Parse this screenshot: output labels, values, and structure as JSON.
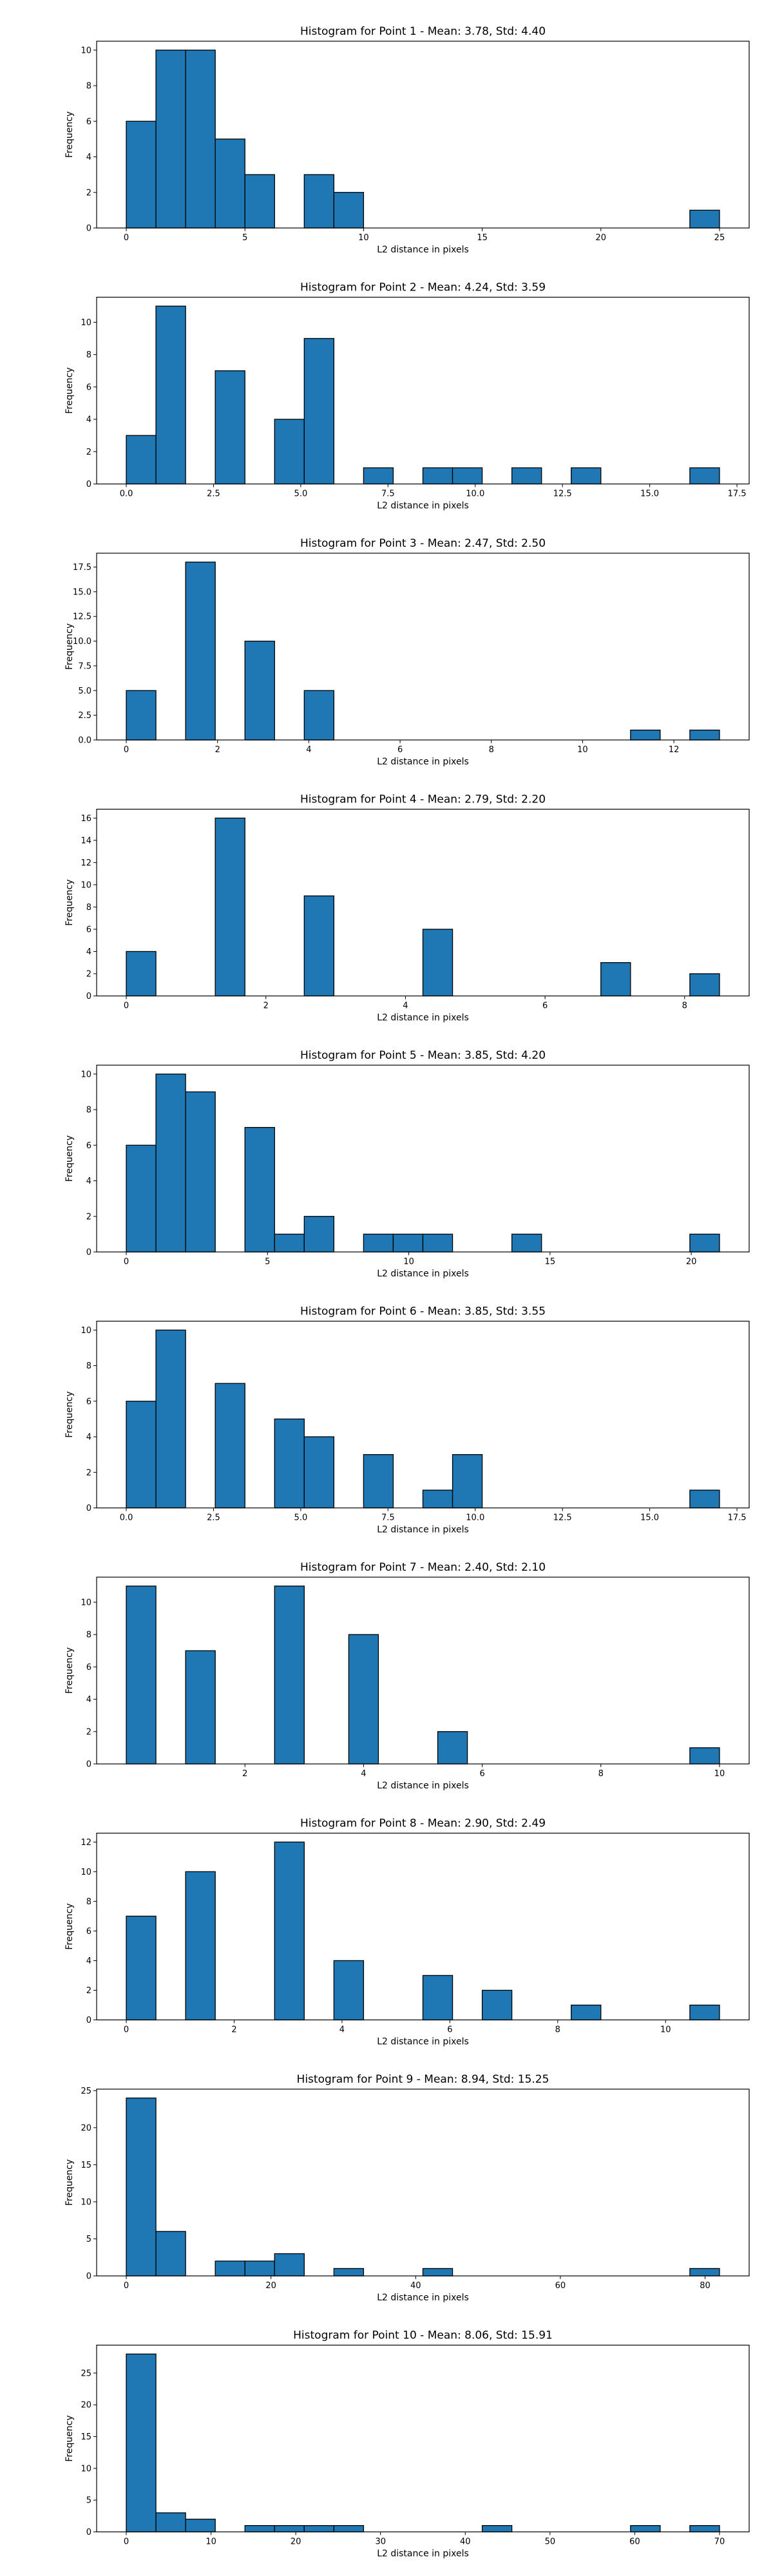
{
  "chart_data": [
    {
      "type": "bar",
      "title": "Histogram for Point 1 - Mean: 3.78, Std: 4.40",
      "xlabel": "L2 distance in pixels",
      "ylabel": "Frequency",
      "xlim": [
        -1.25,
        26.25
      ],
      "ylim": [
        0,
        10.5
      ],
      "xticks": [
        0,
        5,
        10,
        15,
        20,
        25
      ],
      "xtick_labels": [
        "0",
        "5",
        "10",
        "15",
        "20",
        "25"
      ],
      "yticks": [
        0,
        2,
        4,
        6,
        8,
        10
      ],
      "ytick_labels": [
        "0",
        "2",
        "4",
        "6",
        "8",
        "10"
      ],
      "bins": [
        [
          0,
          1.25,
          6
        ],
        [
          1.25,
          2.5,
          10
        ],
        [
          2.5,
          3.75,
          10
        ],
        [
          3.75,
          5,
          5
        ],
        [
          5,
          6.25,
          3
        ],
        [
          7.5,
          8.75,
          3
        ],
        [
          8.75,
          10,
          2
        ],
        [
          23.75,
          25,
          1
        ]
      ]
    },
    {
      "type": "bar",
      "title": "Histogram for Point 2 - Mean: 4.24, Std: 3.59",
      "xlabel": "L2 distance in pixels",
      "ylabel": "Frequency",
      "xlim": [
        -0.85,
        17.85
      ],
      "ylim": [
        0,
        11.55
      ],
      "xticks": [
        0,
        2.5,
        5,
        7.5,
        10,
        12.5,
        15,
        17.5
      ],
      "xtick_labels": [
        "0.0",
        "2.5",
        "5.0",
        "7.5",
        "10.0",
        "12.5",
        "15.0",
        "17.5"
      ],
      "yticks": [
        0,
        2,
        4,
        6,
        8,
        10
      ],
      "ytick_labels": [
        "0",
        "2",
        "4",
        "6",
        "8",
        "10"
      ],
      "bins": [
        [
          0,
          0.85,
          3
        ],
        [
          0.85,
          1.7,
          11
        ],
        [
          2.55,
          3.4,
          7
        ],
        [
          4.25,
          5.1,
          4
        ],
        [
          5.1,
          5.95,
          9
        ],
        [
          6.8,
          7.65,
          1
        ],
        [
          8.5,
          9.35,
          1
        ],
        [
          9.35,
          10.2,
          1
        ],
        [
          11.05,
          11.9,
          1
        ],
        [
          12.75,
          13.6,
          1
        ],
        [
          16.15,
          17,
          1
        ]
      ]
    },
    {
      "type": "bar",
      "title": "Histogram for Point 3 - Mean: 2.47, Std: 2.50",
      "xlabel": "L2 distance in pixels",
      "ylabel": "Frequency",
      "xlim": [
        -0.65,
        13.65
      ],
      "ylim": [
        0,
        18.9
      ],
      "xticks": [
        0,
        2,
        4,
        6,
        8,
        10,
        12
      ],
      "xtick_labels": [
        "0",
        "2",
        "4",
        "6",
        "8",
        "10",
        "12"
      ],
      "yticks": [
        0,
        2.5,
        5,
        7.5,
        10,
        12.5,
        15,
        17.5
      ],
      "ytick_labels": [
        "0.0",
        "2.5",
        "5.0",
        "7.5",
        "10.0",
        "12.5",
        "15.0",
        "17.5"
      ],
      "bins": [
        [
          0,
          0.65,
          5
        ],
        [
          1.3,
          1.95,
          18
        ],
        [
          2.6,
          3.25,
          10
        ],
        [
          3.9,
          4.55,
          5
        ],
        [
          11.05,
          11.7,
          1
        ],
        [
          12.35,
          13,
          1
        ]
      ]
    },
    {
      "type": "bar",
      "title": "Histogram for Point 4 - Mean: 2.79, Std: 2.20",
      "xlabel": "L2 distance in pixels",
      "ylabel": "Frequency",
      "xlim": [
        -0.425,
        8.925
      ],
      "ylim": [
        0,
        16.8
      ],
      "xticks": [
        0,
        2,
        4,
        6,
        8
      ],
      "xtick_labels": [
        "0",
        "2",
        "4",
        "6",
        "8"
      ],
      "yticks": [
        0,
        2,
        4,
        6,
        8,
        10,
        12,
        14,
        16
      ],
      "ytick_labels": [
        "0",
        "2",
        "4",
        "6",
        "8",
        "10",
        "12",
        "14",
        "16"
      ],
      "bins": [
        [
          0,
          0.425,
          4
        ],
        [
          1.275,
          1.7,
          16
        ],
        [
          2.55,
          2.975,
          9
        ],
        [
          4.25,
          4.675,
          6
        ],
        [
          6.8,
          7.225,
          3
        ],
        [
          8.075,
          8.5,
          2
        ]
      ]
    },
    {
      "type": "bar",
      "title": "Histogram for Point 5 - Mean: 3.85, Std: 4.20",
      "xlabel": "L2 distance in pixels",
      "ylabel": "Frequency",
      "xlim": [
        -1.05,
        22.05
      ],
      "ylim": [
        0,
        10.5
      ],
      "xticks": [
        0,
        5,
        10,
        15,
        20
      ],
      "xtick_labels": [
        "0",
        "5",
        "10",
        "15",
        "20"
      ],
      "yticks": [
        0,
        2,
        4,
        6,
        8,
        10
      ],
      "ytick_labels": [
        "0",
        "2",
        "4",
        "6",
        "8",
        "10"
      ],
      "bins": [
        [
          0,
          1.05,
          6
        ],
        [
          1.05,
          2.1,
          10
        ],
        [
          2.1,
          3.15,
          9
        ],
        [
          4.2,
          5.25,
          7
        ],
        [
          5.25,
          6.3,
          1
        ],
        [
          6.3,
          7.35,
          2
        ],
        [
          8.4,
          9.45,
          1
        ],
        [
          9.45,
          10.5,
          1
        ],
        [
          10.5,
          11.55,
          1
        ],
        [
          13.65,
          14.7,
          1
        ],
        [
          19.95,
          21,
          1
        ]
      ]
    },
    {
      "type": "bar",
      "title": "Histogram for Point 6 - Mean: 3.85, Std: 3.55",
      "xlabel": "L2 distance in pixels",
      "ylabel": "Frequency",
      "xlim": [
        -0.85,
        17.85
      ],
      "ylim": [
        0,
        10.5
      ],
      "xticks": [
        0,
        2.5,
        5,
        7.5,
        10,
        12.5,
        15,
        17.5
      ],
      "xtick_labels": [
        "0.0",
        "2.5",
        "5.0",
        "7.5",
        "10.0",
        "12.5",
        "15.0",
        "17.5"
      ],
      "yticks": [
        0,
        2,
        4,
        6,
        8,
        10
      ],
      "ytick_labels": [
        "0",
        "2",
        "4",
        "6",
        "8",
        "10"
      ],
      "bins": [
        [
          0,
          0.85,
          6
        ],
        [
          0.85,
          1.7,
          10
        ],
        [
          2.55,
          3.4,
          7
        ],
        [
          4.25,
          5.1,
          5
        ],
        [
          5.1,
          5.95,
          4
        ],
        [
          6.8,
          7.65,
          3
        ],
        [
          8.5,
          9.35,
          1
        ],
        [
          9.35,
          10.2,
          3
        ],
        [
          16.15,
          17,
          1
        ]
      ]
    },
    {
      "type": "bar",
      "title": "Histogram for Point 7 - Mean: 2.40, Std: 2.10",
      "xlabel": "L2 distance in pixels",
      "ylabel": "Frequency",
      "xlim": [
        -0.5,
        10.5
      ],
      "ylim": [
        0,
        11.55
      ],
      "xticks": [
        2,
        4,
        6,
        8,
        10
      ],
      "xtick_labels": [
        "2",
        "4",
        "6",
        "8",
        "10"
      ],
      "yticks": [
        0,
        2,
        4,
        6,
        8,
        10
      ],
      "ytick_labels": [
        "0",
        "2",
        "4",
        "6",
        "8",
        "10"
      ],
      "bins": [
        [
          0,
          0.5,
          11
        ],
        [
          1,
          1.5,
          7
        ],
        [
          2.5,
          3,
          11
        ],
        [
          3.75,
          4.25,
          8
        ],
        [
          5.25,
          5.75,
          2
        ],
        [
          9.5,
          10,
          1
        ]
      ]
    },
    {
      "type": "bar",
      "title": "Histogram for Point 8 - Mean: 2.90, Std: 2.49",
      "xlabel": "L2 distance in pixels",
      "ylabel": "Frequency",
      "xlim": [
        -0.55,
        11.55
      ],
      "ylim": [
        0,
        12.6
      ],
      "xticks": [
        0,
        2,
        4,
        6,
        8,
        10
      ],
      "xtick_labels": [
        "0",
        "2",
        "4",
        "6",
        "8",
        "10"
      ],
      "yticks": [
        0,
        2,
        4,
        6,
        8,
        10,
        12
      ],
      "ytick_labels": [
        "0",
        "2",
        "4",
        "6",
        "8",
        "10",
        "12"
      ],
      "bins": [
        [
          0,
          0.55,
          7
        ],
        [
          1.1,
          1.65,
          10
        ],
        [
          2.75,
          3.3,
          12
        ],
        [
          3.85,
          4.4,
          4
        ],
        [
          5.5,
          6.05,
          3
        ],
        [
          6.6,
          7.15,
          2
        ],
        [
          8.25,
          8.8,
          1
        ],
        [
          10.45,
          11,
          1
        ]
      ]
    },
    {
      "type": "bar",
      "title": "Histogram for Point 9 - Mean: 8.94, Std: 15.25",
      "xlabel": "L2 distance in pixels",
      "ylabel": "Frequency",
      "xlim": [
        -4.1,
        86.1
      ],
      "ylim": [
        0,
        25.2
      ],
      "xticks": [
        0,
        20,
        40,
        60,
        80
      ],
      "xtick_labels": [
        "0",
        "20",
        "40",
        "60",
        "80"
      ],
      "yticks": [
        0,
        5,
        10,
        15,
        20,
        25
      ],
      "ytick_labels": [
        "0",
        "5",
        "10",
        "15",
        "20",
        "25"
      ],
      "bins": [
        [
          0,
          4.1,
          24
        ],
        [
          4.1,
          8.2,
          6
        ],
        [
          12.3,
          16.4,
          2
        ],
        [
          16.4,
          20.5,
          2
        ],
        [
          20.5,
          24.6,
          3
        ],
        [
          28.7,
          32.8,
          1
        ],
        [
          41,
          45.1,
          1
        ],
        [
          77.9,
          82,
          1
        ]
      ]
    },
    {
      "type": "bar",
      "title": "Histogram for Point 10 - Mean: 8.06, Std: 15.91",
      "xlabel": "L2 distance in pixels",
      "ylabel": "Frequency",
      "xlim": [
        -3.5,
        73.5
      ],
      "ylim": [
        0,
        29.4
      ],
      "xticks": [
        0,
        10,
        20,
        30,
        40,
        50,
        60,
        70
      ],
      "xtick_labels": [
        "0",
        "10",
        "20",
        "30",
        "40",
        "50",
        "60",
        "70"
      ],
      "yticks": [
        0,
        5,
        10,
        15,
        20,
        25
      ],
      "ytick_labels": [
        "0",
        "5",
        "10",
        "15",
        "20",
        "25"
      ],
      "bins": [
        [
          0,
          3.5,
          28
        ],
        [
          3.5,
          7,
          3
        ],
        [
          7,
          10.5,
          2
        ],
        [
          14,
          17.5,
          1
        ],
        [
          17.5,
          21,
          1
        ],
        [
          21,
          24.5,
          1
        ],
        [
          24.5,
          28,
          1
        ],
        [
          42,
          45.5,
          1
        ],
        [
          59.5,
          63,
          1
        ],
        [
          66.5,
          70,
          1
        ]
      ]
    }
  ],
  "colors": {
    "bar_fill": "#1f77b4",
    "bar_edge": "#000000",
    "axis": "#000000",
    "background": "#ffffff"
  }
}
